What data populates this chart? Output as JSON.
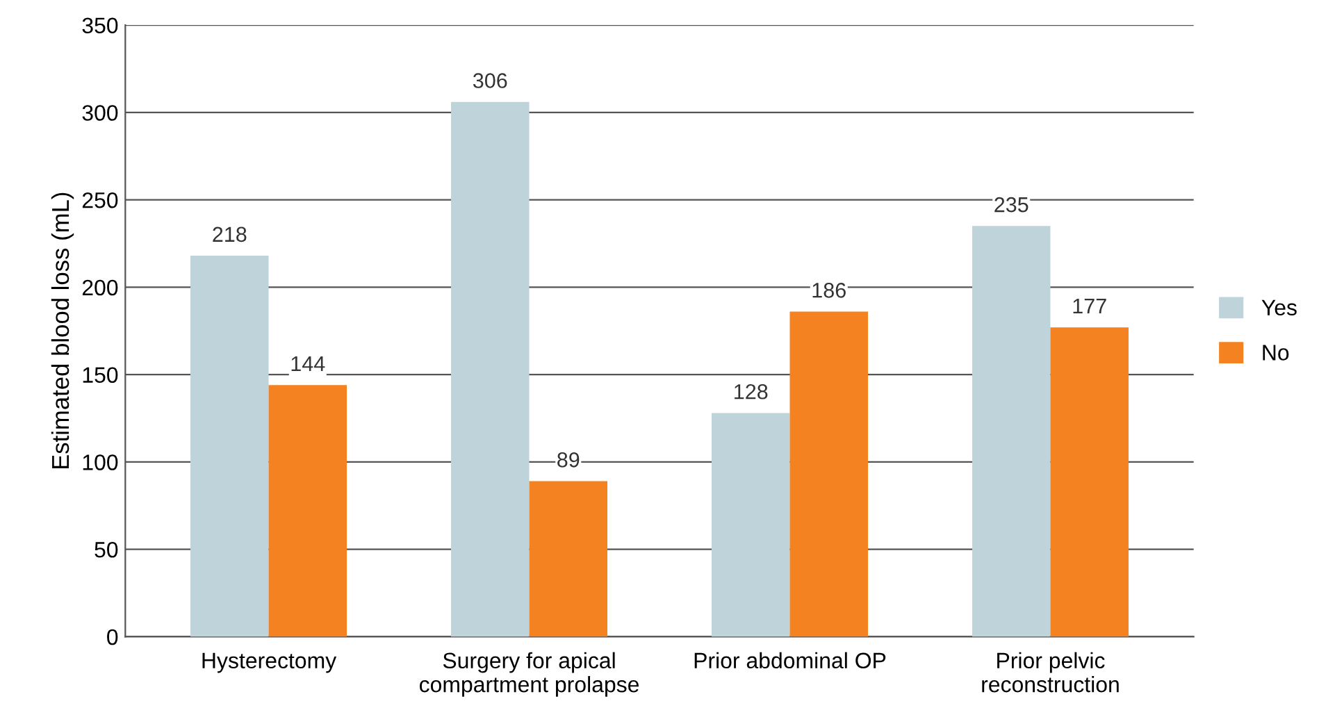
{
  "chart_data": {
    "type": "bar",
    "ylabel": "Estimated blood loss (mL)",
    "categories": [
      "Hysterectomy",
      "Surgery for apical\ncompartment prolapse",
      "Prior abdominal OP",
      "Prior pelvic\nreconstruction"
    ],
    "series": [
      {
        "name": "Yes",
        "color": "#bfd3da",
        "values": [
          218,
          306,
          128,
          235
        ]
      },
      {
        "name": "No",
        "color": "#f58220",
        "values": [
          144,
          89,
          186,
          177
        ]
      }
    ],
    "ylim": [
      0,
      350
    ],
    "yticks": [
      0,
      50,
      100,
      150,
      200,
      250,
      300,
      350
    ],
    "grid": "y",
    "legend": "right",
    "data_labels": true
  }
}
